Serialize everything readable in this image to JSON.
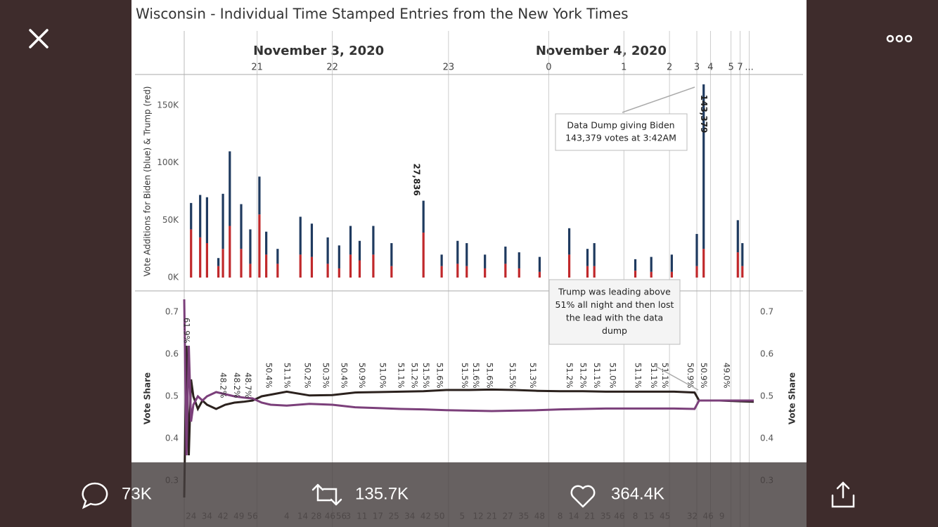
{
  "viewer": {
    "replies": "73K",
    "retweets": "135.7K",
    "likes": "364.4K"
  },
  "chart_data": [
    {
      "type": "bar",
      "title": "Wisconsin - Individual Time Stamped Entries from the New York Times",
      "date_labels": [
        {
          "value": 59,
          "label": "November 3, 2020"
        },
        {
          "value": 183,
          "label": "November 4, 2020"
        }
      ],
      "xlim": [
        0,
        250
      ],
      "xticks": [
        {
          "value": 32,
          "label": "21"
        },
        {
          "value": 65,
          "label": "22"
        },
        {
          "value": 116,
          "label": "23"
        },
        {
          "value": 160,
          "label": "0"
        },
        {
          "value": 193,
          "label": "1"
        },
        {
          "value": 213,
          "label": "2"
        },
        {
          "value": 225,
          "label": "3"
        },
        {
          "value": 231,
          "label": "4"
        },
        {
          "value": 240,
          "label": "5"
        },
        {
          "value": 244,
          "label": "7"
        },
        {
          "value": 248,
          "label": "..."
        }
      ],
      "y_label": "Vote Additions for Biden (blue) & Trump (red)",
      "ylim": [
        -12000,
        177000
      ],
      "yticks": [
        {
          "value": 0,
          "label": "0K"
        },
        {
          "value": 50000,
          "label": "50K"
        },
        {
          "value": 100000,
          "label": "100K"
        },
        {
          "value": 150000,
          "label": "150K"
        }
      ],
      "x": [
        3,
        7,
        10,
        15,
        17,
        20,
        25,
        29,
        33,
        36,
        41,
        51,
        56,
        63,
        68,
        73,
        77,
        83,
        91,
        105,
        113,
        120,
        124,
        132,
        141,
        147,
        156,
        169,
        177,
        180,
        198,
        205,
        214,
        225,
        228,
        243,
        245
      ],
      "series": [
        {
          "color": "#c0282b",
          "values": [
            42000,
            35000,
            30000,
            10000,
            25000,
            45000,
            25000,
            12000,
            55000,
            20000,
            12000,
            20000,
            18000,
            12000,
            8000,
            20000,
            15000,
            20000,
            10000,
            39164,
            10000,
            12000,
            10000,
            8000,
            12000,
            8000,
            5000,
            20000,
            10000,
            10000,
            6000,
            5000,
            5000,
            10000,
            25000,
            22000,
            10000
          ]
        },
        {
          "color": "#1f3a5f",
          "values": [
            23000,
            37000,
            40000,
            7000,
            48000,
            65000,
            39000,
            30000,
            33000,
            20000,
            13000,
            33000,
            29000,
            23000,
            20000,
            25000,
            17000,
            25000,
            20000,
            27836,
            10000,
            20000,
            20000,
            12000,
            15000,
            14000,
            13000,
            23000,
            15000,
            20000,
            10000,
            13000,
            15000,
            28000,
            143379,
            28000,
            20000
          ],
          "value_labels": [
            null,
            null,
            null,
            null,
            null,
            null,
            null,
            null,
            null,
            null,
            null,
            null,
            null,
            null,
            null,
            null,
            null,
            null,
            null,
            "27,836",
            null,
            null,
            null,
            null,
            null,
            null,
            null,
            null,
            null,
            null,
            null,
            null,
            null,
            null,
            "143,379",
            null,
            null
          ]
        }
      ],
      "annotation": {
        "lines": [
          "Data Dump giving Biden",
          "143,379 votes at 3:42AM"
        ]
      }
    },
    {
      "type": "line",
      "y_label": "Vote Share",
      "xlim": [
        0,
        250
      ],
      "xticks": [
        {
          "value": 3,
          "label": "24"
        },
        {
          "value": 10,
          "label": "34"
        },
        {
          "value": 17,
          "label": "42"
        },
        {
          "value": 24,
          "label": "49"
        },
        {
          "value": 30,
          "label": "56"
        },
        {
          "value": 45,
          "label": "4"
        },
        {
          "value": 52,
          "label": "14"
        },
        {
          "value": 58,
          "label": "28"
        },
        {
          "value": 64,
          "label": "46"
        },
        {
          "value": 69,
          "label": "56"
        },
        {
          "value": 72,
          "label": "3"
        },
        {
          "value": 78,
          "label": "11"
        },
        {
          "value": 85,
          "label": "17"
        },
        {
          "value": 92,
          "label": "25"
        },
        {
          "value": 99,
          "label": "34"
        },
        {
          "value": 106,
          "label": "42"
        },
        {
          "value": 112,
          "label": "50"
        },
        {
          "value": 122,
          "label": "5"
        },
        {
          "value": 129,
          "label": "12"
        },
        {
          "value": 135,
          "label": "21"
        },
        {
          "value": 142,
          "label": "27"
        },
        {
          "value": 149,
          "label": "35"
        },
        {
          "value": 156,
          "label": "48"
        },
        {
          "value": 165,
          "label": "8"
        },
        {
          "value": 171,
          "label": "14"
        },
        {
          "value": 178,
          "label": "21"
        },
        {
          "value": 185,
          "label": "35"
        },
        {
          "value": 191,
          "label": "46"
        },
        {
          "value": 198,
          "label": "8"
        },
        {
          "value": 204,
          "label": "15"
        },
        {
          "value": 211,
          "label": "45"
        },
        {
          "value": 223,
          "label": "32"
        },
        {
          "value": 230,
          "label": "46"
        },
        {
          "value": 236,
          "label": "9"
        }
      ],
      "ylim": [
        0.24,
        0.75
      ],
      "yticks": [
        0.3,
        0.4,
        0.5,
        0.6,
        0.7
      ],
      "x": [
        0,
        1,
        2,
        3,
        4,
        6,
        8,
        10,
        14,
        18,
        22,
        26,
        30,
        34,
        38,
        45,
        55,
        65,
        75,
        85,
        95,
        105,
        115,
        125,
        135,
        145,
        155,
        165,
        175,
        185,
        195,
        205,
        215,
        224,
        226,
        230,
        235,
        240,
        245,
        250
      ],
      "series": [
        {
          "color": "#2b211d",
          "values": [
            0.26,
            0.62,
            0.36,
            0.54,
            0.5,
            0.47,
            0.49,
            0.48,
            0.47,
            0.48,
            0.485,
            0.487,
            0.49,
            0.5,
            0.504,
            0.511,
            0.502,
            0.503,
            0.509,
            0.51,
            0.511,
            0.512,
            0.515,
            0.515,
            0.516,
            0.515,
            0.513,
            0.512,
            0.512,
            0.511,
            0.511,
            0.511,
            0.511,
            0.509,
            0.49,
            0.49,
            0.49,
            0.489,
            0.488,
            0.487
          ]
        },
        {
          "color": "#7b3f7a",
          "values": [
            0.73,
            0.36,
            0.62,
            0.44,
            0.48,
            0.5,
            0.49,
            0.5,
            0.51,
            0.505,
            0.5,
            0.497,
            0.495,
            0.485,
            0.48,
            0.478,
            0.482,
            0.48,
            0.474,
            0.472,
            0.47,
            0.469,
            0.467,
            0.466,
            0.465,
            0.466,
            0.467,
            0.469,
            0.47,
            0.471,
            0.471,
            0.471,
            0.471,
            0.47,
            0.49,
            0.49,
            0.49,
            0.49,
            0.49,
            0.49
          ]
        }
      ],
      "share_labels": [
        {
          "x": 1,
          "label": "61.9%"
        },
        {
          "x": 17,
          "label": "48.2%"
        },
        {
          "x": 23,
          "label": "48.2%"
        },
        {
          "x": 28,
          "label": "48.7%"
        },
        {
          "x": 37,
          "label": "50.4%"
        },
        {
          "x": 45,
          "label": "51.1%"
        },
        {
          "x": 54,
          "label": "50.2%"
        },
        {
          "x": 62,
          "label": "50.3%"
        },
        {
          "x": 70,
          "label": "50.4%"
        },
        {
          "x": 78,
          "label": "50.9%"
        },
        {
          "x": 87,
          "label": "51.0%"
        },
        {
          "x": 95,
          "label": "51.1%"
        },
        {
          "x": 101,
          "label": "51.2%"
        },
        {
          "x": 106,
          "label": "51.5%"
        },
        {
          "x": 112,
          "label": "51.6%"
        },
        {
          "x": 123,
          "label": "51.5%"
        },
        {
          "x": 128,
          "label": "51.6%"
        },
        {
          "x": 134,
          "label": "51.6%"
        },
        {
          "x": 144,
          "label": "51.5%"
        },
        {
          "x": 153,
          "label": "51.3%"
        },
        {
          "x": 169,
          "label": "51.2%"
        },
        {
          "x": 175,
          "label": "51.2%"
        },
        {
          "x": 181,
          "label": "51.1%"
        },
        {
          "x": 188,
          "label": "51.0%"
        },
        {
          "x": 199,
          "label": "51.1%"
        },
        {
          "x": 206,
          "label": "51.1%"
        },
        {
          "x": 211,
          "label": "51.1%"
        },
        {
          "x": 222,
          "label": "50.9%"
        },
        {
          "x": 228,
          "label": "50.9%"
        },
        {
          "x": 238,
          "label": "49.0%"
        }
      ],
      "annotation": {
        "lines": [
          "Trump was leading above",
          "51% all night and then lost",
          "the lead with the data",
          "dump"
        ]
      }
    }
  ]
}
